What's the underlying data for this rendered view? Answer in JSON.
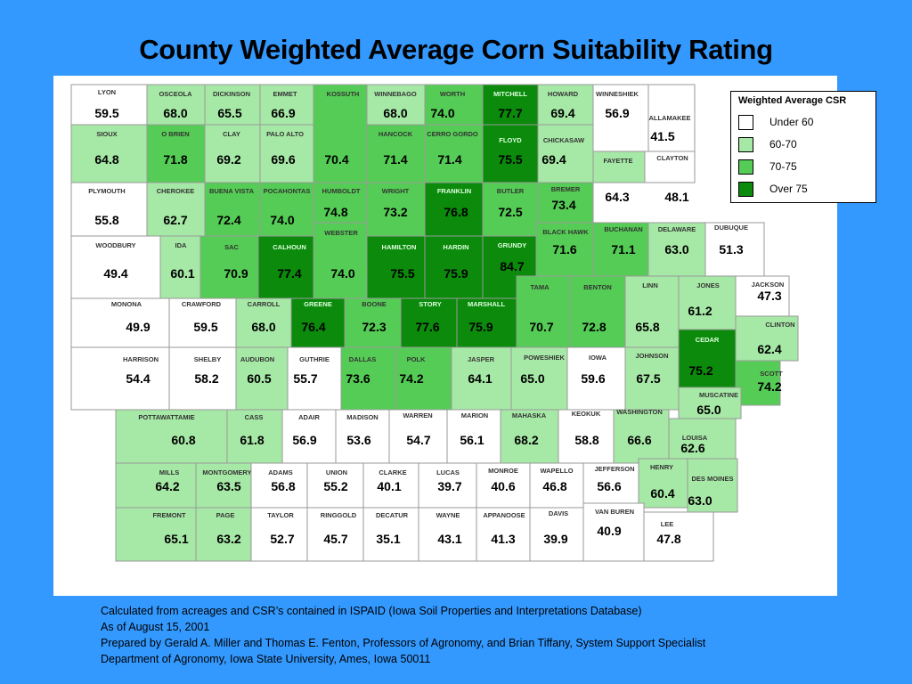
{
  "title": "County Weighted Average Corn Suitability Rating",
  "legend": {
    "title": "Weighted Average CSR",
    "items": [
      {
        "label": "Under  60",
        "color": "#ffffff"
      },
      {
        "label": "60-70",
        "color": "#a6e8a6"
      },
      {
        "label": "70-75",
        "color": "#55cc55"
      },
      {
        "label": "Over 75",
        "color": "#0b8a0b"
      }
    ]
  },
  "footer": [
    "Calculated from acreages and CSR’s contained in ISPAID (Iowa Soil Properties and Interpretations Database)",
    "As of August 15, 2001",
    "Prepared by Gerald A. Miller and Thomas E. Fenton, Professors of Agronomy, and Brian Tiffany, System Support Specialist",
    "Department of Agronomy, Iowa State University, Ames, Iowa 50011"
  ],
  "counties": [
    {
      "name": "LYON",
      "value": "59.5",
      "cls": "w"
    },
    {
      "name": "OSCEOLA",
      "value": "68.0",
      "cls": "l"
    },
    {
      "name": "DICKINSON",
      "value": "65.5",
      "cls": "l"
    },
    {
      "name": "EMMET",
      "value": "66.9",
      "cls": "l"
    },
    {
      "name": "KOSSUTH",
      "value": "70.4",
      "cls": "m"
    },
    {
      "name": "WINNEBAGO",
      "value": "68.0",
      "cls": "l"
    },
    {
      "name": "WORTH",
      "value": "74.0",
      "cls": "m"
    },
    {
      "name": "MITCHELL",
      "value": "77.7",
      "cls": "d"
    },
    {
      "name": "HOWARD",
      "value": "69.4",
      "cls": "l"
    },
    {
      "name": "WINNESHIEK",
      "value": "56.9",
      "cls": "w"
    },
    {
      "name": "ALLAMAKEE",
      "value": "41.5",
      "cls": "w"
    },
    {
      "name": "SIOUX",
      "value": "64.8",
      "cls": "l"
    },
    {
      "name": "O BRIEN",
      "value": "71.8",
      "cls": "m"
    },
    {
      "name": "CLAY",
      "value": "69.2",
      "cls": "l"
    },
    {
      "name": "PALO ALTO",
      "value": "69.6",
      "cls": "l"
    },
    {
      "name": "HANCOCK",
      "value": "71.4",
      "cls": "m"
    },
    {
      "name": "CERRO GORDO",
      "value": "71.4",
      "cls": "m"
    },
    {
      "name": "FLOYD",
      "value": "75.5",
      "cls": "d"
    },
    {
      "name": "CHICKASAW",
      "value": "69.4",
      "cls": "l"
    },
    {
      "name": "FAYETTE",
      "value": "64.3",
      "cls": "l"
    },
    {
      "name": "CLAYTON",
      "value": "48.1",
      "cls": "w"
    },
    {
      "name": "PLYMOUTH",
      "value": "55.8",
      "cls": "w"
    },
    {
      "name": "CHEROKEE",
      "value": "62.7",
      "cls": "l"
    },
    {
      "name": "BUENA VISTA",
      "value": "72.4",
      "cls": "m"
    },
    {
      "name": "POCAHONTAS",
      "value": "74.0",
      "cls": "m"
    },
    {
      "name": "HUMBOLDT",
      "value": "74.8",
      "cls": "m"
    },
    {
      "name": "WRIGHT",
      "value": "73.2",
      "cls": "m"
    },
    {
      "name": "FRANKLIN",
      "value": "76.8",
      "cls": "d"
    },
    {
      "name": "BUTLER",
      "value": "72.5",
      "cls": "m"
    },
    {
      "name": "BREMER",
      "value": "73.4",
      "cls": "m"
    },
    {
      "name": "WOODBURY",
      "value": "49.4",
      "cls": "w"
    },
    {
      "name": "IDA",
      "value": "60.1",
      "cls": "l"
    },
    {
      "name": "SAC",
      "value": "70.9",
      "cls": "m"
    },
    {
      "name": "CALHOUN",
      "value": "77.4",
      "cls": "d"
    },
    {
      "name": "WEBSTER",
      "value": "74.0",
      "cls": "m"
    },
    {
      "name": "HAMILTON",
      "value": "75.5",
      "cls": "d"
    },
    {
      "name": "HARDIN",
      "value": "75.9",
      "cls": "d"
    },
    {
      "name": "GRUNDY",
      "value": "84.7",
      "cls": "d"
    },
    {
      "name": "BLACK HAWK",
      "value": "71.6",
      "cls": "m"
    },
    {
      "name": "BUCHANAN",
      "value": "71.1",
      "cls": "m"
    },
    {
      "name": "DELAWARE",
      "value": "63.0",
      "cls": "l"
    },
    {
      "name": "DUBUQUE",
      "value": "51.3",
      "cls": "w"
    },
    {
      "name": "MONONA",
      "value": "49.9",
      "cls": "w"
    },
    {
      "name": "CRAWFORD",
      "value": "59.5",
      "cls": "w"
    },
    {
      "name": "CARROLL",
      "value": "68.0",
      "cls": "l"
    },
    {
      "name": "GREENE",
      "value": "76.4",
      "cls": "d"
    },
    {
      "name": "BOONE",
      "value": "72.3",
      "cls": "m"
    },
    {
      "name": "STORY",
      "value": "77.6",
      "cls": "d"
    },
    {
      "name": "MARSHALL",
      "value": "75.9",
      "cls": "d"
    },
    {
      "name": "TAMA",
      "value": "70.7",
      "cls": "m"
    },
    {
      "name": "BENTON",
      "value": "72.8",
      "cls": "m"
    },
    {
      "name": "LINN",
      "value": "65.8",
      "cls": "l"
    },
    {
      "name": "JONES",
      "value": "61.2",
      "cls": "l"
    },
    {
      "name": "JACKSON",
      "value": "47.3",
      "cls": "w"
    },
    {
      "name": "CLINTON",
      "value": "62.4",
      "cls": "l"
    },
    {
      "name": "CEDAR",
      "value": "75.2",
      "cls": "d"
    },
    {
      "name": "SCOTT",
      "value": "74.2",
      "cls": "m"
    },
    {
      "name": "HARRISON",
      "value": "54.4",
      "cls": "w"
    },
    {
      "name": "SHELBY",
      "value": "58.2",
      "cls": "w"
    },
    {
      "name": "AUDUBON",
      "value": "60.5",
      "cls": "l"
    },
    {
      "name": "GUTHRIE",
      "value": "55.7",
      "cls": "w"
    },
    {
      "name": "DALLAS",
      "value": "73.6",
      "cls": "m"
    },
    {
      "name": "POLK",
      "value": "74.2",
      "cls": "m"
    },
    {
      "name": "JASPER",
      "value": "64.1",
      "cls": "l"
    },
    {
      "name": "POWESHIEK",
      "value": "65.0",
      "cls": "l"
    },
    {
      "name": "IOWA",
      "value": "59.6",
      "cls": "w"
    },
    {
      "name": "JOHNSON",
      "value": "67.5",
      "cls": "l"
    },
    {
      "name": "MUSCATINE",
      "value": "65.0",
      "cls": "l"
    },
    {
      "name": "POTTAWATTAMIE",
      "value": "60.8",
      "cls": "l"
    },
    {
      "name": "CASS",
      "value": "61.8",
      "cls": "l"
    },
    {
      "name": "ADAIR",
      "value": "56.9",
      "cls": "w"
    },
    {
      "name": "MADISON",
      "value": "53.6",
      "cls": "w"
    },
    {
      "name": "WARREN",
      "value": "54.7",
      "cls": "w"
    },
    {
      "name": "MARION",
      "value": "56.1",
      "cls": "w"
    },
    {
      "name": "MAHASKA",
      "value": "68.2",
      "cls": "l"
    },
    {
      "name": "KEOKUK",
      "value": "58.8",
      "cls": "w"
    },
    {
      "name": "WASHINGTON",
      "value": "66.6",
      "cls": "l"
    },
    {
      "name": "LOUISA",
      "value": "62.6",
      "cls": "l"
    },
    {
      "name": "MILLS",
      "value": "64.2",
      "cls": "l"
    },
    {
      "name": "MONTGOMERY",
      "value": "63.5",
      "cls": "l"
    },
    {
      "name": "ADAMS",
      "value": "56.8",
      "cls": "w"
    },
    {
      "name": "UNION",
      "value": "55.2",
      "cls": "w"
    },
    {
      "name": "CLARKE",
      "value": "40.1",
      "cls": "w"
    },
    {
      "name": "LUCAS",
      "value": "39.7",
      "cls": "w"
    },
    {
      "name": "MONROE",
      "value": "40.6",
      "cls": "w"
    },
    {
      "name": "WAPELLO",
      "value": "46.8",
      "cls": "w"
    },
    {
      "name": "JEFFERSON",
      "value": "56.6",
      "cls": "w"
    },
    {
      "name": "HENRY",
      "value": "60.4",
      "cls": "l"
    },
    {
      "name": "DES MOINES",
      "value": "63.0",
      "cls": "l"
    },
    {
      "name": "FREMONT",
      "value": "65.1",
      "cls": "l"
    },
    {
      "name": "PAGE",
      "value": "63.2",
      "cls": "l"
    },
    {
      "name": "TAYLOR",
      "value": "52.7",
      "cls": "w"
    },
    {
      "name": "RINGGOLD",
      "value": "45.7",
      "cls": "w"
    },
    {
      "name": "DECATUR",
      "value": "35.1",
      "cls": "w"
    },
    {
      "name": "WAYNE",
      "value": "43.1",
      "cls": "w"
    },
    {
      "name": "APPANOOSE",
      "value": "41.3",
      "cls": "w"
    },
    {
      "name": "DAVIS",
      "value": "39.9",
      "cls": "w"
    },
    {
      "name": "VAN BUREN",
      "value": "40.9",
      "cls": "w"
    },
    {
      "name": "LEE",
      "value": "47.8",
      "cls": "w"
    }
  ]
}
